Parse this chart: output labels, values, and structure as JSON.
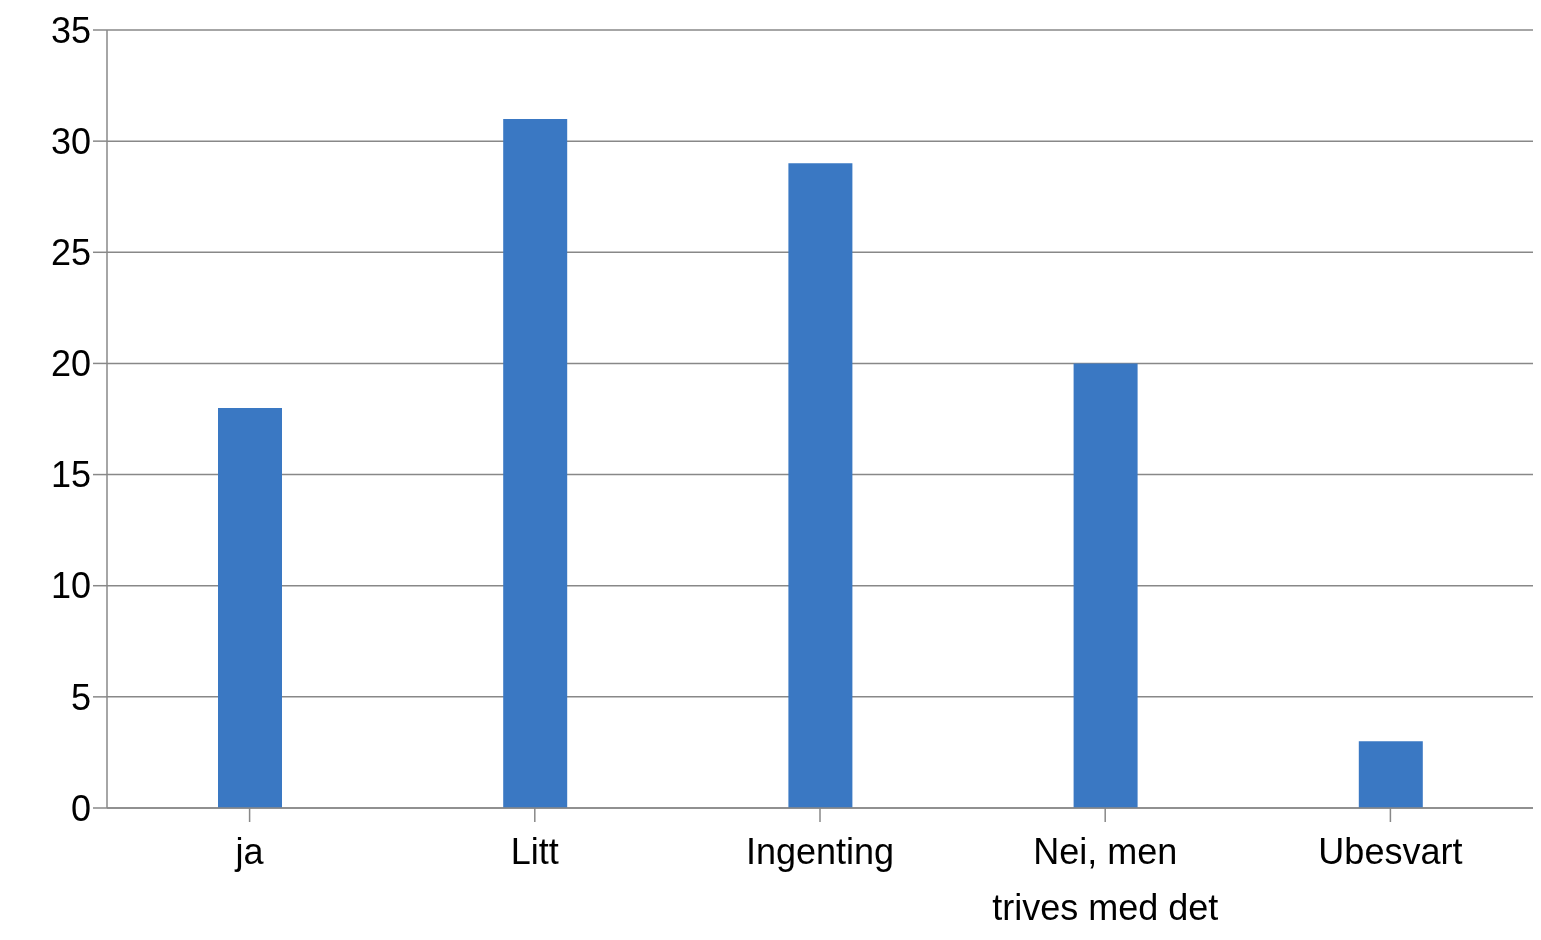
{
  "chart_data": {
    "type": "bar",
    "categories": [
      "ja",
      "Litt",
      "Ingenting",
      "Nei, men trives med det",
      "Ubesvart"
    ],
    "values": [
      18,
      31,
      29,
      20,
      3
    ],
    "color": "#3a78c3",
    "ylim": [
      0,
      35
    ],
    "yticks": [
      0,
      5,
      10,
      15,
      20,
      25,
      30,
      35
    ],
    "grid": "y"
  }
}
